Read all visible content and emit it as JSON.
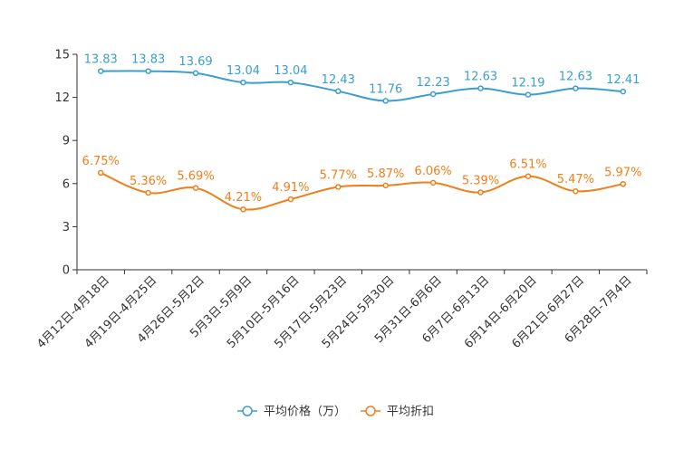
{
  "chart_data": {
    "type": "line",
    "categories": [
      "4月12日-4月18日",
      "4月19日-4月25日",
      "4月26日-5月2日",
      "5月3日-5月9日",
      "5月10日-5月16日",
      "5月17日-5月23日",
      "5月24日-5月30日",
      "5月31日-6月6日",
      "6月7日-6月13日",
      "6月14日-6月20日",
      "6月21日-6月27日",
      "6月28日-7月4日"
    ],
    "ylim": [
      0,
      15
    ],
    "yticks": [
      0,
      3,
      6,
      9,
      12,
      15
    ],
    "series": [
      {
        "name": "平均价格（万）",
        "color": "#3a9fd0",
        "values": [
          13.83,
          13.83,
          13.69,
          13.04,
          13.04,
          12.43,
          11.76,
          12.23,
          12.63,
          12.19,
          12.63,
          12.41
        ],
        "labels": [
          "13.83",
          "13.83",
          "13.69",
          "13.04",
          "13.04",
          "12.43",
          "11.76",
          "12.23",
          "12.63",
          "12.19",
          "12.63",
          "12.41"
        ]
      },
      {
        "name": "平均折扣",
        "color": "#f07f1a",
        "values": [
          6.75,
          5.36,
          5.69,
          4.21,
          4.91,
          5.77,
          5.87,
          6.06,
          5.39,
          6.51,
          5.47,
          5.97
        ],
        "labels": [
          "6.75%",
          "5.36%",
          "5.69%",
          "4.21%",
          "4.91%",
          "5.77%",
          "5.87%",
          "6.06%",
          "5.39%",
          "6.51%",
          "5.47%",
          "5.97%"
        ]
      }
    ],
    "legend_position": "bottom-center"
  }
}
